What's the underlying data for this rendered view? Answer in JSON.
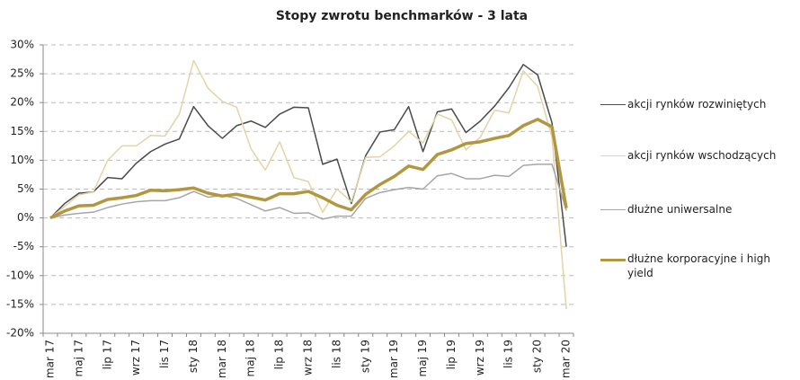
{
  "chart_data": {
    "type": "line",
    "title": "Stopy zwrotu benchmarków - 3 lata",
    "categories": [
      "mar 17",
      null,
      "maj 17",
      null,
      "lip 17",
      null,
      "wrz 17",
      null,
      "lis 17",
      null,
      "sty 18",
      null,
      "mar 18",
      null,
      "maj 18",
      null,
      "lip 18",
      null,
      "wrz 18",
      null,
      "lis 18",
      null,
      "sty 19",
      null,
      "mar 19",
      null,
      "maj 19",
      null,
      "lip 19",
      null,
      "wrz 19",
      null,
      "lis 19",
      null,
      "sty 20",
      null,
      "mar 20"
    ],
    "series": [
      {
        "name": "akcji rynków rozwiniętych",
        "color": "#4a4a4a",
        "width": 1.5,
        "values": [
          0,
          2.5,
          4.3,
          4.5,
          7,
          6.8,
          9.5,
          11.5,
          12.8,
          13.7,
          19.3,
          16,
          13.8,
          16,
          16.8,
          15.7,
          18,
          19.2,
          19.1,
          9.3,
          10.2,
          2.5,
          10.8,
          14.9,
          15.3,
          19.3,
          11.5,
          18.4,
          18.9,
          14.8,
          16.8,
          19.4,
          22.6,
          26.6,
          24.8,
          16.5,
          -5
        ]
      },
      {
        "name": "akcji rynków wschodzących",
        "color": "#e3d3a6",
        "width": 1.5,
        "values": [
          0,
          2,
          4,
          4.5,
          10,
          12.5,
          12.5,
          14.3,
          14.2,
          18,
          27.3,
          22.5,
          20.2,
          19.2,
          12,
          8.3,
          13.2,
          7,
          6.3,
          1,
          5,
          2.8,
          10.5,
          10.6,
          12.5,
          15,
          13,
          18,
          17,
          11.8,
          14,
          18.7,
          18.2,
          25.5,
          22.8,
          14,
          -15.8
        ]
      },
      {
        "name": "dłużne uniwersalne",
        "color": "#a6a6a6",
        "width": 1.5,
        "values": [
          0,
          0.5,
          0.8,
          1,
          1.8,
          2.4,
          2.8,
          3,
          3,
          3.5,
          4.6,
          3.6,
          3.9,
          3.4,
          2.3,
          1.2,
          1.8,
          0.8,
          0.9,
          -0.2,
          0.3,
          0.3,
          3.4,
          4.4,
          4.9,
          5.3,
          5,
          7.3,
          7.7,
          6.8,
          6.8,
          7.4,
          7.2,
          9.1,
          9.3,
          9.3,
          1.3
        ]
      },
      {
        "name": "dłużne korporacyjne i high yield",
        "color": "#b39740",
        "width": 3.5,
        "values": [
          0,
          1.2,
          2.1,
          2.2,
          3.2,
          3.5,
          3.9,
          4.8,
          4.7,
          4.9,
          5.2,
          4.3,
          3.8,
          4.1,
          3.6,
          3.1,
          4.2,
          4.2,
          4.6,
          3.5,
          2.2,
          1.4,
          4.1,
          5.8,
          7.2,
          9,
          8.4,
          11,
          11.8,
          12.9,
          13.2,
          13.8,
          14.3,
          16,
          17.1,
          15.8,
          1.7
        ]
      }
    ],
    "ylim": [
      -20,
      30
    ],
    "yticks": [
      {
        "value": -20,
        "label": "-20%"
      },
      {
        "value": -15,
        "label": "-15%"
      },
      {
        "value": -10,
        "label": "-10%"
      },
      {
        "value": -5,
        "label": "-5%"
      },
      {
        "value": 0,
        "label": "0%"
      },
      {
        "value": 5,
        "label": "5%"
      },
      {
        "value": 10,
        "label": "10%"
      },
      {
        "value": 15,
        "label": "15%"
      },
      {
        "value": 20,
        "label": "20%"
      },
      {
        "value": 25,
        "label": "25%"
      },
      {
        "value": 30,
        "label": "30%"
      }
    ],
    "grid": true,
    "legend": "right"
  }
}
